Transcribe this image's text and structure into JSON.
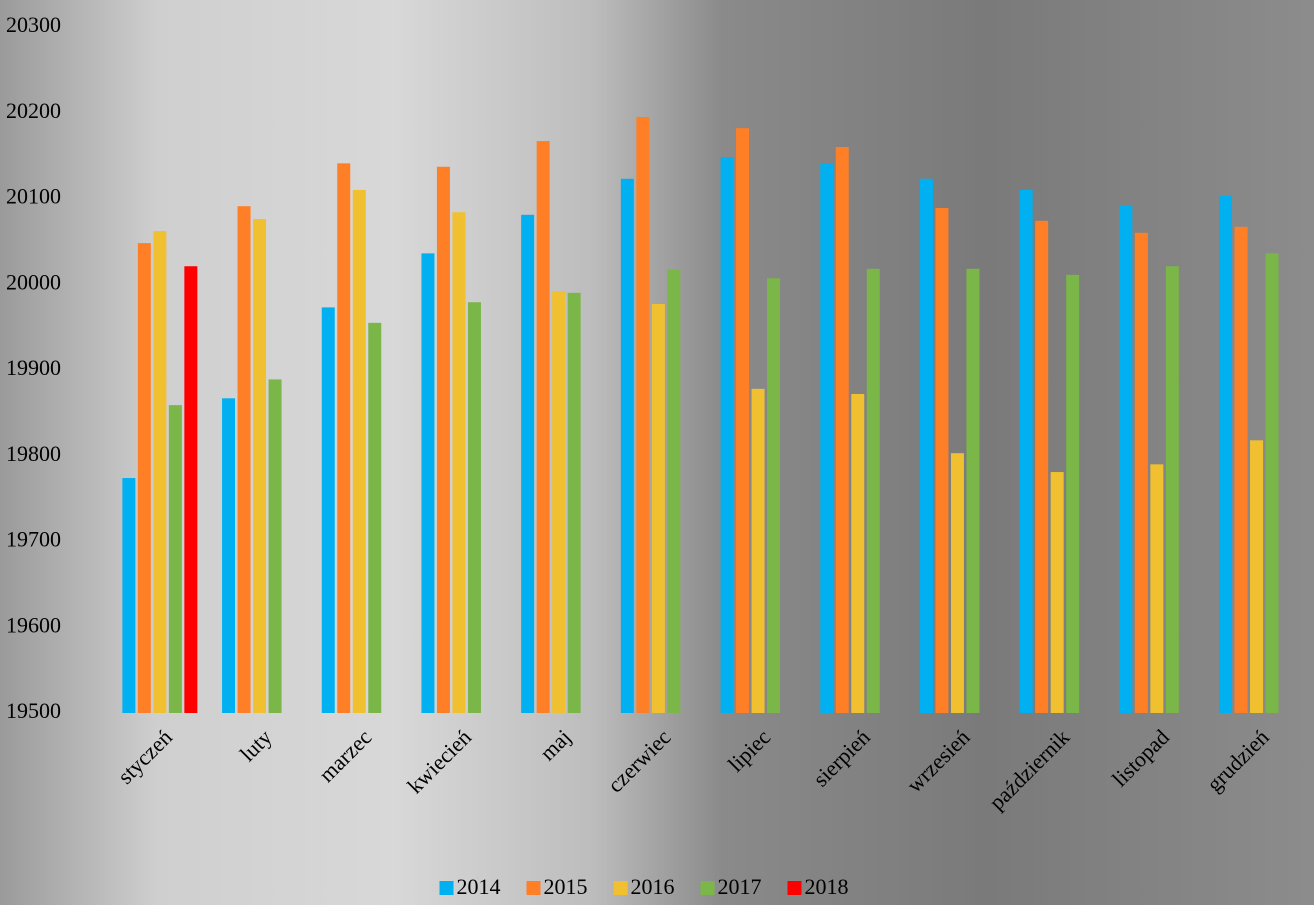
{
  "chart_data": {
    "type": "bar",
    "categories": [
      "styczeń",
      "luty",
      "marzec",
      "kwiecień",
      "maj",
      "czerwiec",
      "lipiec",
      "sierpień",
      "wrzesień",
      "październik",
      "listopad",
      "grudzień"
    ],
    "series": [
      {
        "name": "2014",
        "color": "#00b0f0",
        "values": [
          19774,
          19867,
          19973,
          20036,
          20081,
          20123,
          20148,
          20141,
          20123,
          20110,
          20092,
          20103
        ]
      },
      {
        "name": "2015",
        "color": "#ff7f27",
        "values": [
          20048,
          20091,
          20141,
          20137,
          20167,
          20195,
          20182,
          20160,
          20089,
          20074,
          20060,
          20067
        ]
      },
      {
        "name": "2016",
        "color": "#f0c030",
        "values": [
          20062,
          20076,
          20110,
          20084,
          19992,
          19977,
          19878,
          19872,
          19803,
          19781,
          19790,
          19818
        ]
      },
      {
        "name": "2017",
        "color": "#7ab648",
        "values": [
          19859,
          19889,
          19955,
          19979,
          19990,
          20017,
          20007,
          20018,
          20018,
          20011,
          20021,
          20036
        ]
      },
      {
        "name": "2018",
        "color": "#ff0000",
        "values": [
          20021,
          null,
          null,
          null,
          null,
          null,
          null,
          null,
          null,
          null,
          null,
          null
        ]
      }
    ],
    "ylim": [
      19500,
      20300
    ],
    "yticks": [
      19500,
      19600,
      19700,
      19800,
      19900,
      20000,
      20100,
      20200,
      20300
    ],
    "grid": false,
    "legend": "bottom"
  }
}
